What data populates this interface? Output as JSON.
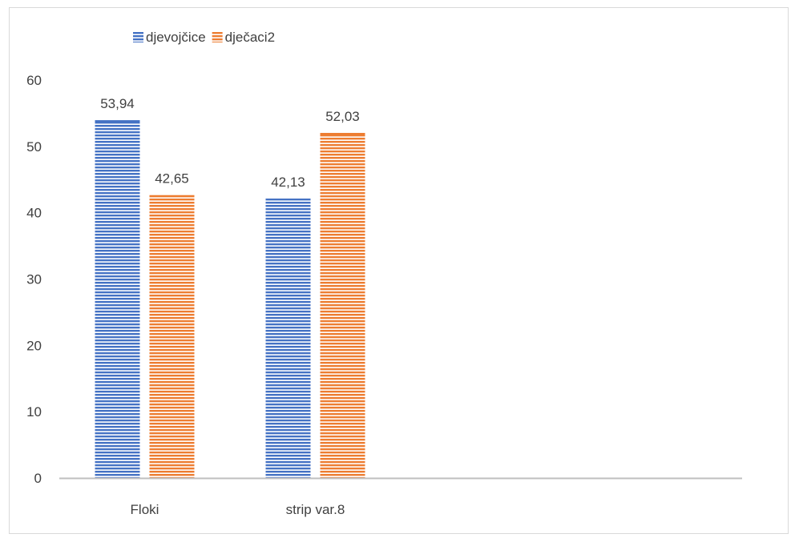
{
  "chart_data": {
    "type": "bar",
    "title": "",
    "xlabel": "",
    "ylabel": "",
    "categories": [
      "Floki",
      "strip var.8"
    ],
    "category_slots": 4,
    "series": [
      {
        "name": "djevojčice",
        "values": [
          53.94,
          42.13
        ],
        "labels": [
          "53,94",
          "42,13"
        ],
        "color": "#4472c4"
      },
      {
        "name": "dječaci2",
        "values": [
          42.65,
          52.03
        ],
        "labels": [
          "42,65",
          "52,03"
        ],
        "color": "#ed7d31"
      }
    ],
    "ylim": [
      0,
      60
    ],
    "yticks": [
      "0",
      "10",
      "20",
      "30",
      "40",
      "50",
      "60"
    ],
    "ytick_values": [
      0,
      10,
      20,
      30,
      40,
      50,
      60
    ],
    "grid": false,
    "legend_position": "top-left",
    "bar_fill": "horizontal-stripes"
  }
}
